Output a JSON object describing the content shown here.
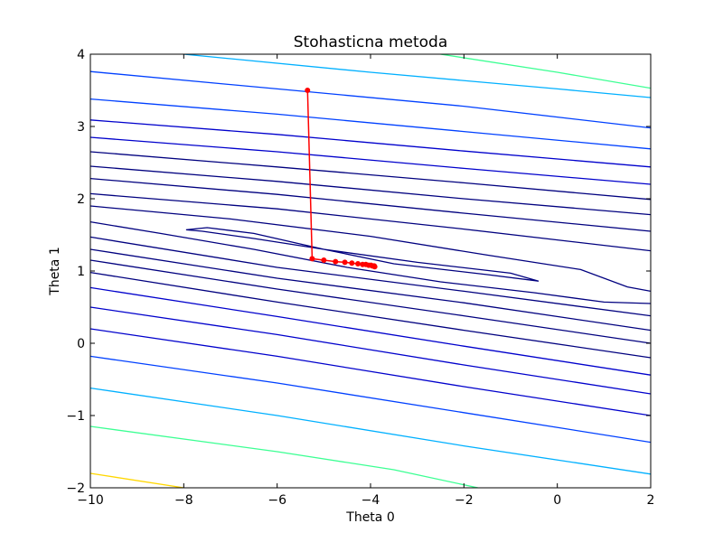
{
  "chart_data": {
    "type": "contour",
    "title": "Stohasticna metoda",
    "xlabel": "Theta 0",
    "ylabel": "Theta 1",
    "xlim": [
      -10,
      2
    ],
    "ylim": [
      -2,
      4
    ],
    "xticks": [
      -10,
      -8,
      -6,
      -4,
      -2,
      0,
      2
    ],
    "yticks": [
      -2,
      -1,
      0,
      1,
      2,
      3,
      4
    ],
    "xtick_labels": [
      "−10",
      "−8",
      "−6",
      "−4",
      "−2",
      "0",
      "2"
    ],
    "ytick_labels": [
      "−2",
      "−1",
      "0",
      "1",
      "2",
      "3",
      "4"
    ],
    "grid": false,
    "contour_colors": [
      "#00007f",
      "#0000cc",
      "#0040ff",
      "#00b0ff",
      "#3cff93",
      "#ffd700"
    ],
    "contour_lines": [
      {
        "color": "#00007f",
        "points": [
          [
            -7.95,
            1.57
          ],
          [
            -7.5,
            1.6
          ],
          [
            -6.5,
            1.52
          ],
          [
            -5,
            1.3
          ],
          [
            -3.5,
            1.1
          ],
          [
            -1.5,
            0.95
          ],
          [
            -0.4,
            0.86
          ],
          [
            -1,
            0.97
          ],
          [
            -3,
            1.12
          ],
          [
            -5,
            1.3
          ],
          [
            -6.5,
            1.45
          ],
          [
            -7.6,
            1.55
          ],
          [
            -7.95,
            1.57
          ]
        ]
      },
      {
        "color": "#00007f",
        "points": [
          [
            -10,
            1.68
          ],
          [
            -8.5,
            1.52
          ],
          [
            -6.5,
            1.3
          ],
          [
            -4.5,
            1.05
          ],
          [
            -2.5,
            0.85
          ],
          [
            -0.5,
            0.7
          ],
          [
            1,
            0.57
          ],
          [
            2,
            0.55
          ]
        ]
      },
      {
        "color": "#00007f",
        "points": [
          [
            -10,
            1.9
          ],
          [
            -7,
            1.72
          ],
          [
            -4,
            1.48
          ],
          [
            -1.5,
            1.22
          ],
          [
            0.5,
            1.02
          ],
          [
            1.5,
            0.78
          ],
          [
            2,
            0.72
          ]
        ]
      },
      {
        "color": "#00007f",
        "points": [
          [
            -10,
            1.47
          ],
          [
            -6,
            1.05
          ],
          [
            -2,
            0.72
          ],
          [
            2,
            0.38
          ]
        ]
      },
      {
        "color": "#00007f",
        "points": [
          [
            -10,
            2.07
          ],
          [
            -6,
            1.86
          ],
          [
            -2,
            1.58
          ],
          [
            2,
            1.28
          ]
        ]
      },
      {
        "color": "#00007f",
        "points": [
          [
            -10,
            1.3
          ],
          [
            -6,
            0.9
          ],
          [
            -2,
            0.56
          ],
          [
            2,
            0.18
          ]
        ]
      },
      {
        "color": "#00007f",
        "points": [
          [
            -10,
            2.28
          ],
          [
            -6,
            2.06
          ],
          [
            -2,
            1.8
          ],
          [
            2,
            1.55
          ]
        ]
      },
      {
        "color": "#00007f",
        "points": [
          [
            -10,
            1.15
          ],
          [
            -6,
            0.75
          ],
          [
            -2,
            0.38
          ],
          [
            2,
            0.0
          ]
        ]
      },
      {
        "color": "#00007f",
        "points": [
          [
            -10,
            2.45
          ],
          [
            -6,
            2.24
          ],
          [
            -2,
            2.0
          ],
          [
            2,
            1.78
          ]
        ]
      },
      {
        "color": "#00007f",
        "points": [
          [
            -10,
            0.98
          ],
          [
            -6,
            0.57
          ],
          [
            -2,
            0.18
          ],
          [
            2,
            -0.2
          ]
        ]
      },
      {
        "color": "#00007f",
        "points": [
          [
            -10,
            2.65
          ],
          [
            -6,
            2.44
          ],
          [
            -2,
            2.22
          ],
          [
            2,
            1.99
          ]
        ]
      },
      {
        "color": "#0000cc",
        "points": [
          [
            -10,
            0.77
          ],
          [
            -6,
            0.37
          ],
          [
            -2,
            -0.04
          ],
          [
            2,
            -0.44
          ]
        ]
      },
      {
        "color": "#0000cc",
        "points": [
          [
            -10,
            2.85
          ],
          [
            -6,
            2.65
          ],
          [
            -2,
            2.42
          ],
          [
            2,
            2.2
          ]
        ]
      },
      {
        "color": "#0000cc",
        "points": [
          [
            -10,
            0.5
          ],
          [
            -6,
            0.12
          ],
          [
            -2,
            -0.3
          ],
          [
            2,
            -0.7
          ]
        ]
      },
      {
        "color": "#0000cc",
        "points": [
          [
            -10,
            3.09
          ],
          [
            -6,
            2.89
          ],
          [
            -2,
            2.66
          ],
          [
            2,
            2.44
          ]
        ]
      },
      {
        "color": "#0000cc",
        "points": [
          [
            -10,
            0.2
          ],
          [
            -6,
            -0.18
          ],
          [
            -2,
            -0.6
          ],
          [
            2,
            -1.0
          ]
        ]
      },
      {
        "color": "#0040ff",
        "points": [
          [
            -10,
            3.38
          ],
          [
            -6,
            3.17
          ],
          [
            -2,
            2.93
          ],
          [
            2,
            2.69
          ]
        ]
      },
      {
        "color": "#0040ff",
        "points": [
          [
            -10,
            -0.18
          ],
          [
            -6,
            -0.55
          ],
          [
            -2,
            -0.96
          ],
          [
            2,
            -1.37
          ]
        ]
      },
      {
        "color": "#0040ff",
        "points": [
          [
            -10,
            3.76
          ],
          [
            -6,
            3.52
          ],
          [
            -2,
            3.28
          ],
          [
            2,
            2.98
          ]
        ]
      },
      {
        "color": "#00b0ff",
        "points": [
          [
            -10,
            -0.62
          ],
          [
            -6,
            -1.0
          ],
          [
            -2,
            -1.42
          ],
          [
            2,
            -1.81
          ]
        ]
      },
      {
        "color": "#00b0ff",
        "points": [
          [
            -8,
            4.0
          ],
          [
            -4,
            3.75
          ],
          [
            0,
            3.52
          ],
          [
            2,
            3.4
          ]
        ]
      },
      {
        "color": "#3cff93",
        "points": [
          [
            -10,
            -1.15
          ],
          [
            -6,
            -1.5
          ],
          [
            -3.5,
            -1.75
          ],
          [
            -1.7,
            -2.0
          ]
        ]
      },
      {
        "color": "#3cff93",
        "points": [
          [
            -2.5,
            4.0
          ],
          [
            0,
            3.75
          ],
          [
            2,
            3.53
          ]
        ]
      },
      {
        "color": "#ffd700",
        "points": [
          [
            -10,
            -1.8
          ],
          [
            -8,
            -2.0
          ]
        ]
      }
    ],
    "series": [
      {
        "color": "#ff0000",
        "x": [
          -5.35,
          -5.25,
          -5.0,
          -4.75,
          -4.55,
          -4.4,
          -4.27,
          -4.17,
          -4.1,
          -4.04,
          -3.99,
          -3.96,
          -3.94,
          -3.92,
          -3.91
        ],
        "y": [
          3.5,
          1.17,
          1.15,
          1.13,
          1.12,
          1.11,
          1.1,
          1.09,
          1.09,
          1.08,
          1.08,
          1.07,
          1.07,
          1.07,
          1.06
        ]
      }
    ]
  }
}
